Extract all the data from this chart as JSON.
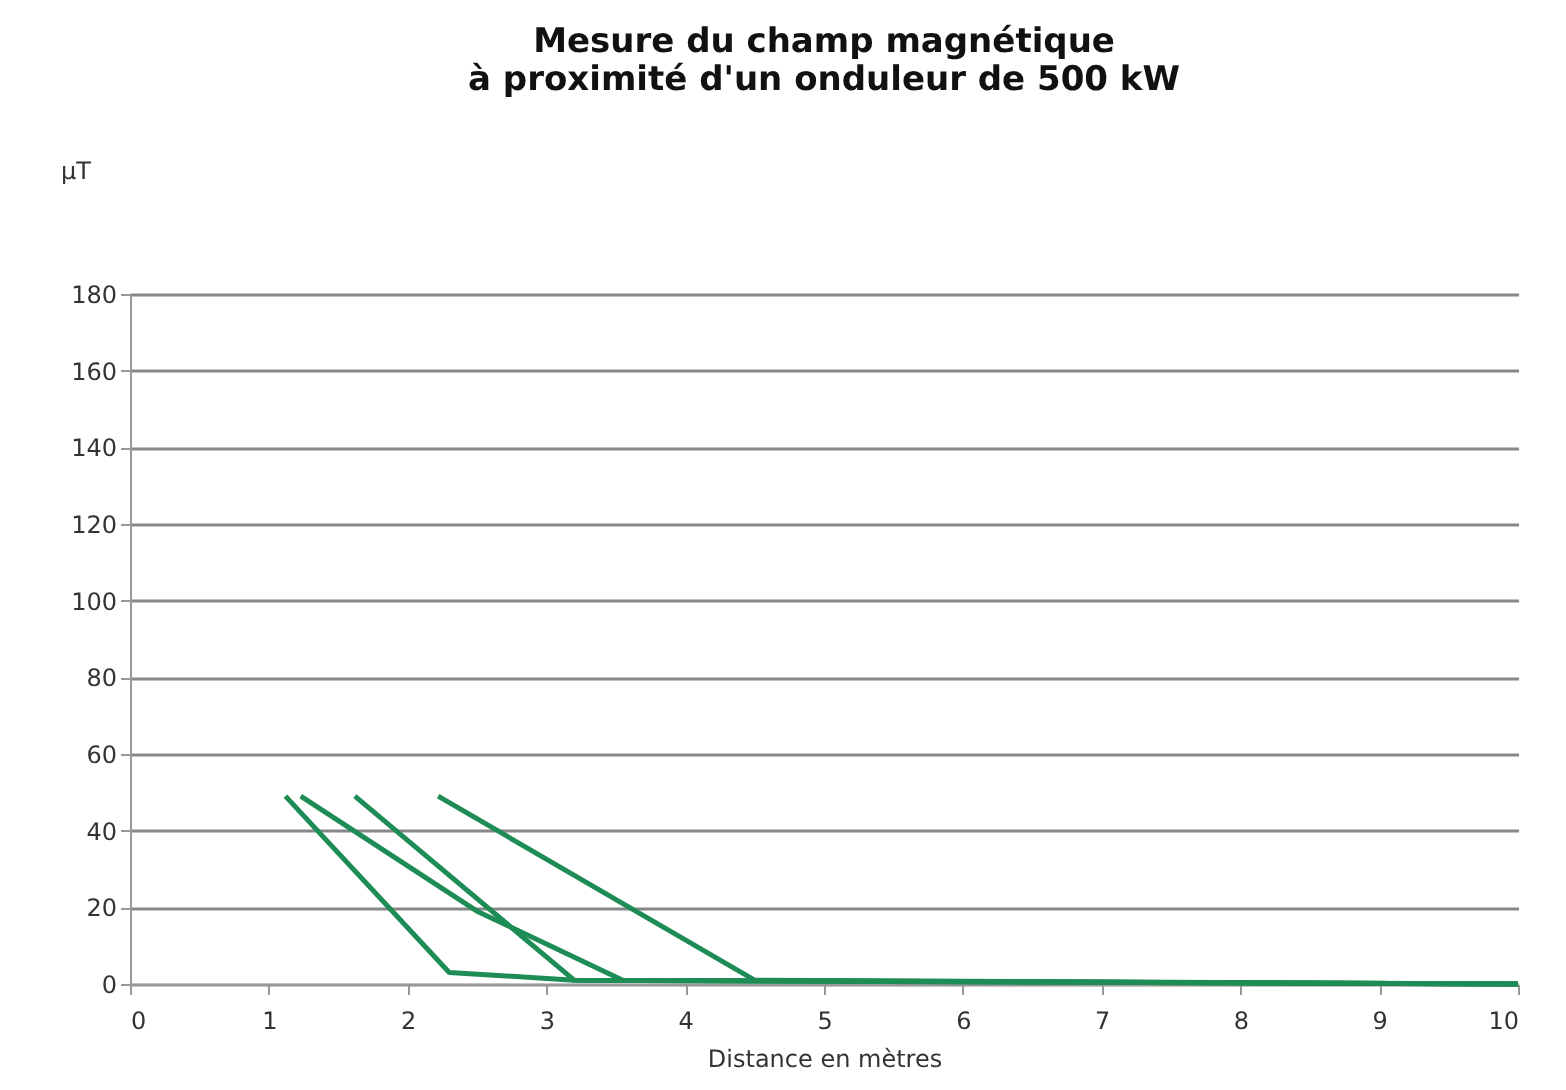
{
  "chart_data": {
    "type": "line",
    "title": [
      "Mesure du champ magnétique",
      "à proximité d'un onduleur de 500 kW"
    ],
    "xlabel": "Distance en mètres",
    "ylabel": "µT",
    "series": [
      {
        "color": "#1e8c55",
        "x": [
          1.12,
          2.3,
          3.2,
          10
        ],
        "values": [
          49,
          3,
          1,
          0
        ]
      },
      {
        "color": "#1e8c55",
        "x": [
          1.23,
          2.5,
          3.55,
          10
        ],
        "values": [
          49,
          19,
          1,
          0
        ]
      },
      {
        "color": "#1e8c55",
        "x": [
          1.62,
          3.2,
          10
        ],
        "values": [
          49,
          1,
          0
        ]
      },
      {
        "color": "#1e8c55",
        "x": [
          2.22,
          4.5,
          10
        ],
        "values": [
          49,
          1,
          0
        ]
      }
    ],
    "xlim": [
      0,
      10
    ],
    "xticks": [
      0,
      1,
      2,
      3,
      4,
      5,
      6,
      7,
      8,
      9,
      10
    ],
    "ylim": [
      0,
      180
    ],
    "yticks": [
      0,
      20,
      40,
      60,
      80,
      100,
      120,
      140,
      160,
      180
    ],
    "grid": "y",
    "legend": false,
    "marker": "none",
    "line_style": "solid"
  }
}
